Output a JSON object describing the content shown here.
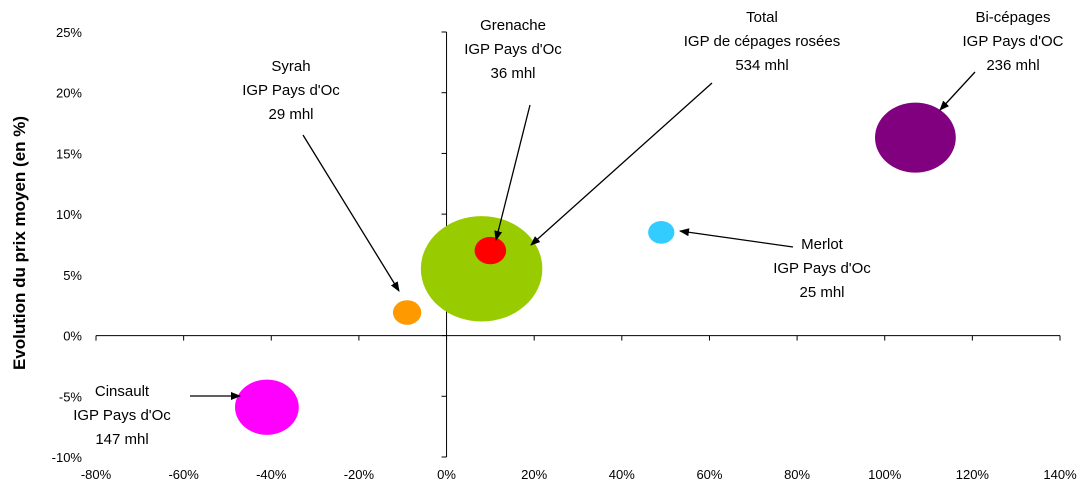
{
  "chart_data": {
    "type": "bubble",
    "ylabel": "Evolution du prix moyen (en %)",
    "xlabel": "",
    "xlim": [
      -80,
      140
    ],
    "ylim": [
      -10,
      25
    ],
    "x_ticks": [
      "-80%",
      "-60%",
      "-40%",
      "-20%",
      "0%",
      "20%",
      "40%",
      "60%",
      "80%",
      "100%",
      "120%",
      "140%"
    ],
    "y_ticks": [
      "-10%",
      "-5%",
      "0%",
      "5%",
      "10%",
      "15%",
      "20%",
      "25%"
    ],
    "grid": false,
    "points": [
      {
        "label": [
          "Total",
          "IGP de cépages rosées",
          "534 mhl"
        ],
        "x": 8,
        "y": 5.5,
        "volume": 534,
        "color": "#99cc00"
      },
      {
        "label": [
          "Bi-cépages",
          "IGP Pays d'OC",
          "236 mhl"
        ],
        "x": 107,
        "y": 16.3,
        "volume": 236,
        "color": "#800080"
      },
      {
        "label": [
          "Cinsault",
          "IGP Pays d'Oc",
          "147 mhl"
        ],
        "x": -41,
        "y": -5.9,
        "volume": 147,
        "color": "#ff00ff"
      },
      {
        "label": [
          "Grenache",
          "IGP Pays d'Oc",
          "36 mhl"
        ],
        "x": 10,
        "y": 7.0,
        "volume": 36,
        "color": "#ff0000"
      },
      {
        "label": [
          "Syrah",
          "IGP Pays d'Oc",
          "29 mhl"
        ],
        "x": -9,
        "y": 1.9,
        "volume": 29,
        "color": "#ff9900"
      },
      {
        "label": [
          "Merlot",
          "IGP Pays d'Oc",
          "25 mhl"
        ],
        "x": 49,
        "y": 8.5,
        "volume": 25,
        "color": "#33ccff"
      }
    ]
  }
}
